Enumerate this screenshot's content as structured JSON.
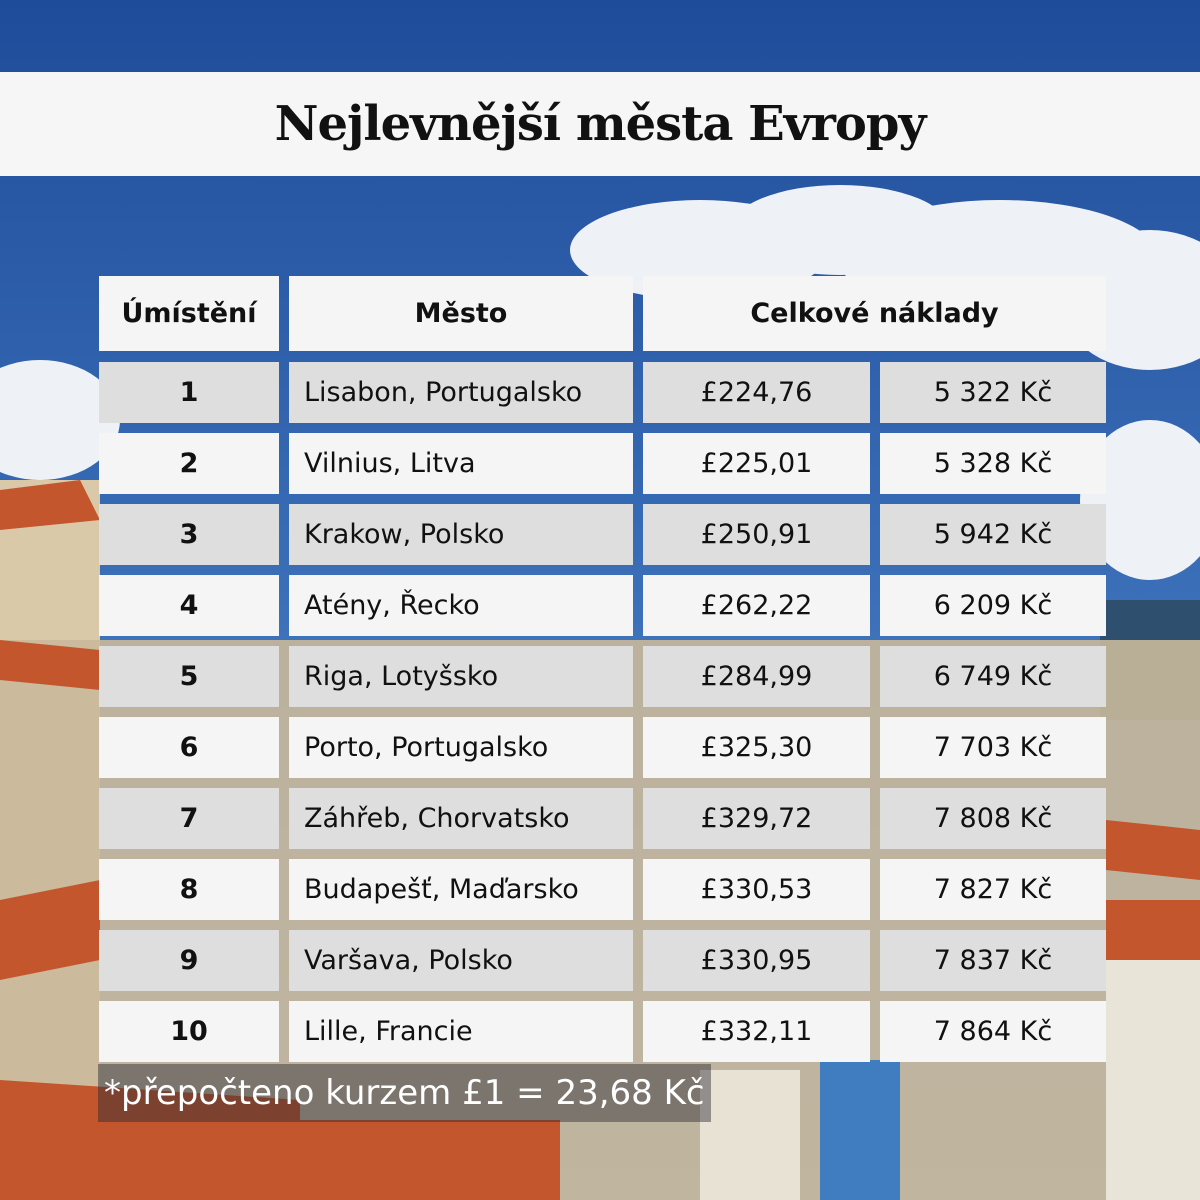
{
  "header": {
    "title": "Nejlevnější města Evropy"
  },
  "table": {
    "columns": [
      "Úmístění",
      "Město",
      "Celkové náklady"
    ],
    "rows": [
      [
        "1",
        "Lisabon, Portugalsko",
        "£224,76",
        "5 322 Kč"
      ],
      [
        "2",
        "Vilnius, Litva",
        "£225,01",
        "5 328 Kč"
      ],
      [
        "3",
        "Krakow, Polsko",
        "£250,91",
        "5 942 Kč"
      ],
      [
        "4",
        "Atény, Řecko",
        "£262,22",
        "6 209 Kč"
      ],
      [
        "5",
        "Riga, Lotyšsko",
        "£284,99",
        "6 749 Kč"
      ],
      [
        "6",
        "Porto, Portugalsko",
        "£325,30",
        "7 703 Kč"
      ],
      [
        "7",
        "Záhřeb, Chorvatsko",
        "£329,72",
        "7 808 Kč"
      ],
      [
        "8",
        "Budapešť, Maďarsko",
        "£330,53",
        "7 827 Kč"
      ],
      [
        "9",
        "Varšava, Polsko",
        "£330,95",
        "7 837 Kč"
      ],
      [
        "10",
        "Lille, Francie",
        "£332,11",
        "7 864 Kč"
      ]
    ]
  },
  "footnote": "*přepočteno kurzem £1 = 23,68 Kč"
}
